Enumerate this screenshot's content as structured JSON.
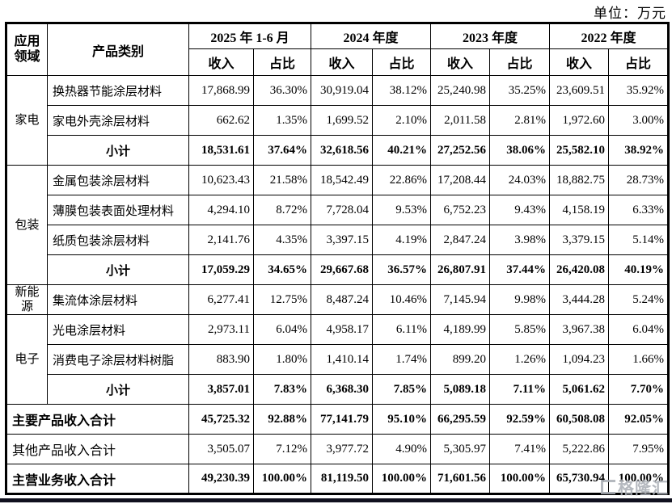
{
  "unit_label": "单位：万元",
  "watermark": {
    "text": "格隆汇"
  },
  "colors": {
    "border": "#000000",
    "text": "#000000",
    "bottom_bar": "#10101e",
    "watermark_gray": "#a9adb5"
  },
  "table": {
    "header": {
      "col_app": "应用\n领域",
      "col_category": "产品类别",
      "periods": [
        "2025 年 1-6 月",
        "2024 年度",
        "2023 年度",
        "2022 年度"
      ],
      "sub_income": "收入",
      "sub_ratio": "占比"
    },
    "rows": [
      {
        "group": {
          "label": "家电",
          "rowspan": 3
        },
        "name": "换热器节能涂层材料",
        "bold": false,
        "merged": false,
        "center": false,
        "values": [
          "17,868.99",
          "36.30%",
          "30,919.04",
          "38.12%",
          "25,240.98",
          "35.25%",
          "23,609.51",
          "35.92%"
        ]
      },
      {
        "name": "家电外壳涂层材料",
        "bold": false,
        "merged": false,
        "center": false,
        "values": [
          "662.62",
          "1.35%",
          "1,699.52",
          "2.10%",
          "2,011.58",
          "2.81%",
          "1,972.60",
          "3.00%"
        ]
      },
      {
        "name": "小计",
        "bold": true,
        "merged": false,
        "center": true,
        "values": [
          "18,531.61",
          "37.64%",
          "32,618.56",
          "40.21%",
          "27,252.56",
          "38.06%",
          "25,582.10",
          "38.92%"
        ]
      },
      {
        "group": {
          "label": "包装",
          "rowspan": 4
        },
        "name": "金属包装涂层材料",
        "bold": false,
        "merged": false,
        "center": false,
        "values": [
          "10,623.43",
          "21.58%",
          "18,542.49",
          "22.86%",
          "17,208.44",
          "24.03%",
          "18,882.75",
          "28.73%"
        ]
      },
      {
        "name": "薄膜包装表面处理材料",
        "bold": false,
        "merged": false,
        "center": false,
        "values": [
          "4,294.10",
          "8.72%",
          "7,728.04",
          "9.53%",
          "6,752.23",
          "9.43%",
          "4,158.19",
          "6.33%"
        ]
      },
      {
        "name": "纸质包装涂层材料",
        "bold": false,
        "merged": false,
        "center": false,
        "values": [
          "2,141.76",
          "4.35%",
          "3,397.15",
          "4.19%",
          "2,847.24",
          "3.98%",
          "3,379.15",
          "5.14%"
        ]
      },
      {
        "name": "小计",
        "bold": true,
        "merged": false,
        "center": true,
        "values": [
          "17,059.29",
          "34.65%",
          "29,667.68",
          "36.57%",
          "26,807.91",
          "37.44%",
          "26,420.08",
          "40.19%"
        ]
      },
      {
        "group": {
          "label": "新能源",
          "rowspan": 1
        },
        "name": "集流体涂层材料",
        "bold": false,
        "merged": false,
        "center": false,
        "values": [
          "6,277.41",
          "12.75%",
          "8,487.24",
          "10.46%",
          "7,145.94",
          "9.98%",
          "3,444.28",
          "5.24%"
        ]
      },
      {
        "group": {
          "label": "电子",
          "rowspan": 3
        },
        "name": "光电涂层材料",
        "bold": false,
        "merged": false,
        "center": false,
        "values": [
          "2,973.11",
          "6.04%",
          "4,958.17",
          "6.11%",
          "4,189.99",
          "5.85%",
          "3,967.38",
          "6.04%"
        ]
      },
      {
        "name": "消费电子涂层材料树脂",
        "bold": false,
        "merged": false,
        "center": false,
        "values": [
          "883.90",
          "1.80%",
          "1,410.14",
          "1.74%",
          "899.20",
          "1.26%",
          "1,094.23",
          "1.66%"
        ]
      },
      {
        "name": "小计",
        "bold": true,
        "merged": false,
        "center": true,
        "values": [
          "3,857.01",
          "7.83%",
          "6,368.30",
          "7.85%",
          "5,089.18",
          "7.11%",
          "5,061.62",
          "7.70%"
        ]
      },
      {
        "name": "主要产品收入合计",
        "bold": true,
        "merged": true,
        "center": false,
        "values": [
          "45,725.32",
          "92.88%",
          "77,141.79",
          "95.10%",
          "66,295.59",
          "92.59%",
          "60,508.08",
          "92.05%"
        ]
      },
      {
        "name": "其他产品收入合计",
        "bold": false,
        "merged": true,
        "center": false,
        "values": [
          "3,505.07",
          "7.12%",
          "3,977.72",
          "4.90%",
          "5,305.97",
          "7.41%",
          "5,222.86",
          "7.95%"
        ]
      },
      {
        "name": "主营业务收入合计",
        "bold": true,
        "merged": true,
        "center": false,
        "values": [
          "49,230.39",
          "100.00%",
          "81,119.50",
          "100.00%",
          "71,601.56",
          "100.00%",
          "65,730.94",
          "100.00%"
        ]
      }
    ]
  }
}
